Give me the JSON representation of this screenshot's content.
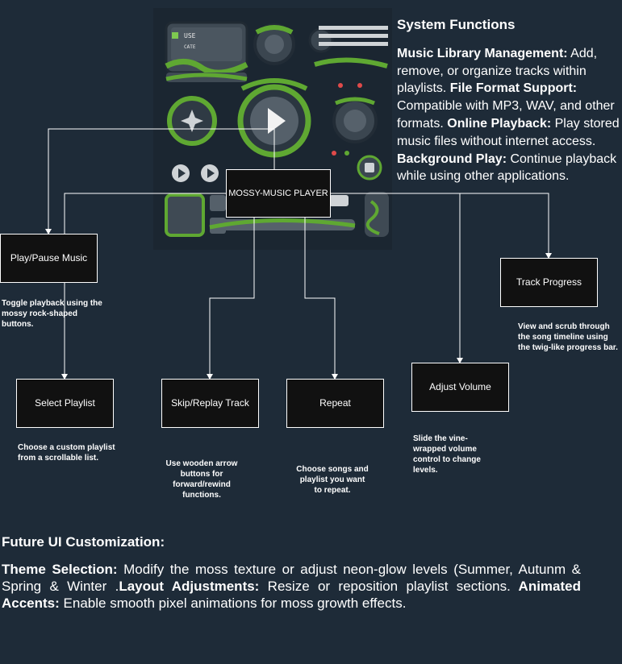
{
  "title_node": "MOSSY-MUSIC PLAYER",
  "hero_image": {
    "button_use": "USE",
    "button_cate": "CATE",
    "icons": [
      "play-icon",
      "pause-icon",
      "leaf-icon",
      "moss-vine-icon",
      "speaker-knob-icon",
      "progress-slider-icon"
    ]
  },
  "system_functions": {
    "heading": "System Functions",
    "items": [
      {
        "label": "Music Library Management:",
        "text": " Add, remove, or organize tracks within playlists."
      },
      {
        "label": " File Format Support:",
        "text": " Compatible with MP3, WAV, and other formats."
      },
      {
        "label": " Online Playback:",
        "text": " Play stored music files without internet access."
      },
      {
        "label": " Background Play:",
        "text": " Continue playback while using other applications."
      }
    ]
  },
  "nodes": {
    "play_pause": {
      "label": "Play/Pause Music",
      "desc": "Toggle playback using the mossy rock-shaped buttons."
    },
    "select_playlist": {
      "label": "Select Playlist",
      "desc": "Choose a custom playlist from a scrollable list."
    },
    "skip_replay": {
      "label": "Skip/Replay Track",
      "desc": "Use wooden arrow buttons for forward/rewind functions."
    },
    "repeat": {
      "label": "Repeat",
      "desc": "Choose songs and playlist you want to repeat."
    },
    "adjust_volume": {
      "label": "Adjust Volume",
      "desc": "Slide the vine-wrapped volume control to change levels."
    },
    "track_progress": {
      "label": "Track Progress",
      "desc": "View and scrub through the song timeline using the twig-like progress bar."
    }
  },
  "future": {
    "heading": "Future UI Customization:",
    "items": [
      {
        "label": "Theme Selection:",
        "text": " Modify the moss texture or adjust neon-glow levels (Summer, Autunm & Spring & Winter ."
      },
      {
        "label": "Layout Adjustments:",
        "text": " Resize or reposition playlist sections."
      },
      {
        "label": " Animated Accents:",
        "text": " Enable smooth pixel animations for moss growth effects."
      }
    ]
  },
  "colors": {
    "background": "#1e2b38",
    "node_fill": "#111111",
    "line": "#ffffff",
    "moss": "#5fa832"
  }
}
